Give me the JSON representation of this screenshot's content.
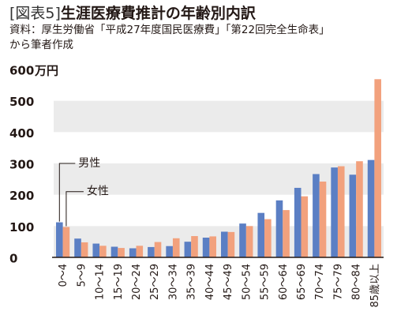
{
  "header": {
    "bracket": "[図表5]",
    "title": "生涯医療費推計の年齢別内訳",
    "source_line1": "資料：厚生労働省「平成27年度国民医療費」「第22回完全生命表」",
    "source_line2": "から筆者作成"
  },
  "colors": {
    "male": "#5b7fc4",
    "female": "#f2a17d",
    "band": "#ebebeb",
    "axis": "#231815"
  },
  "chart_data": {
    "type": "bar",
    "title": "生涯医療費推計の年齢別内訳",
    "ylabel": "",
    "yunit": "万円",
    "ylim": [
      0,
      600
    ],
    "yticks": [
      0,
      100,
      200,
      300,
      400,
      500,
      600
    ],
    "ytick_labels": [
      "0",
      "100",
      "200",
      "300",
      "400",
      "500",
      "600"
    ],
    "grid": "alternating horizontal bands",
    "categories": [
      "0～4",
      "5～9",
      "10～14",
      "15～19",
      "20～24",
      "25～29",
      "30～34",
      "35～39",
      "40～44",
      "45～49",
      "50～54",
      "55～59",
      "60～64",
      "65～69",
      "70～74",
      "75～79",
      "80～84",
      "85歳以上"
    ],
    "series": [
      {
        "name": "男性",
        "values": [
          112,
          60,
          44,
          34,
          29,
          33,
          36,
          50,
          63,
          82,
          108,
          142,
          182,
          222,
          266,
          287,
          264,
          311
        ]
      },
      {
        "name": "女性",
        "values": [
          97,
          48,
          37,
          30,
          37,
          49,
          61,
          68,
          67,
          81,
          100,
          122,
          151,
          195,
          242,
          291,
          307,
          569
        ]
      }
    ]
  }
}
